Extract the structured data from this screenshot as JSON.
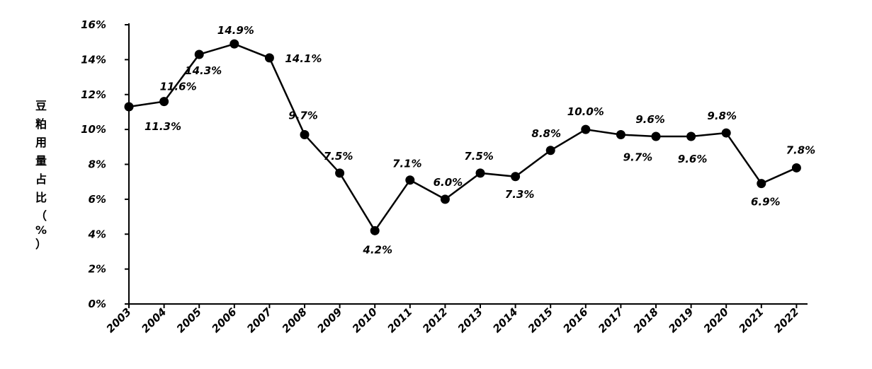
{
  "chart_data": {
    "type": "line",
    "ylabel": "豆粕用量占比（%）",
    "categories": [
      "2003",
      "2004",
      "2005",
      "2006",
      "2007",
      "2008",
      "2009",
      "2010",
      "2011",
      "2012",
      "2013",
      "2014",
      "2015",
      "2016",
      "2017",
      "2018",
      "2019",
      "2020",
      "2021",
      "2022"
    ],
    "values": [
      11.3,
      11.6,
      14.3,
      14.9,
      14.1,
      9.7,
      7.5,
      4.2,
      7.1,
      6.0,
      7.5,
      7.3,
      8.8,
      10.0,
      9.7,
      9.6,
      9.6,
      9.8,
      6.9,
      7.8
    ],
    "data_labels": [
      "11.3%",
      "11.6%",
      "14.3%",
      "14.9%",
      "14.1%",
      "9.7%",
      "7.5%",
      "4.2%",
      "7.1%",
      "6.0%",
      "7.5%",
      "7.3%",
      "8.8%",
      "10.0%",
      "9.7%",
      "9.6%",
      "9.6%",
      "9.8%",
      "6.9%",
      "7.8%"
    ],
    "y_ticks": [
      "0%",
      "2%",
      "4%",
      "6%",
      "8%",
      "10%",
      "12%",
      "14%",
      "16%"
    ],
    "ylim": [
      0,
      16
    ],
    "grid": false,
    "legend": "none",
    "line_color": "#000000",
    "marker_color": "#000000"
  }
}
